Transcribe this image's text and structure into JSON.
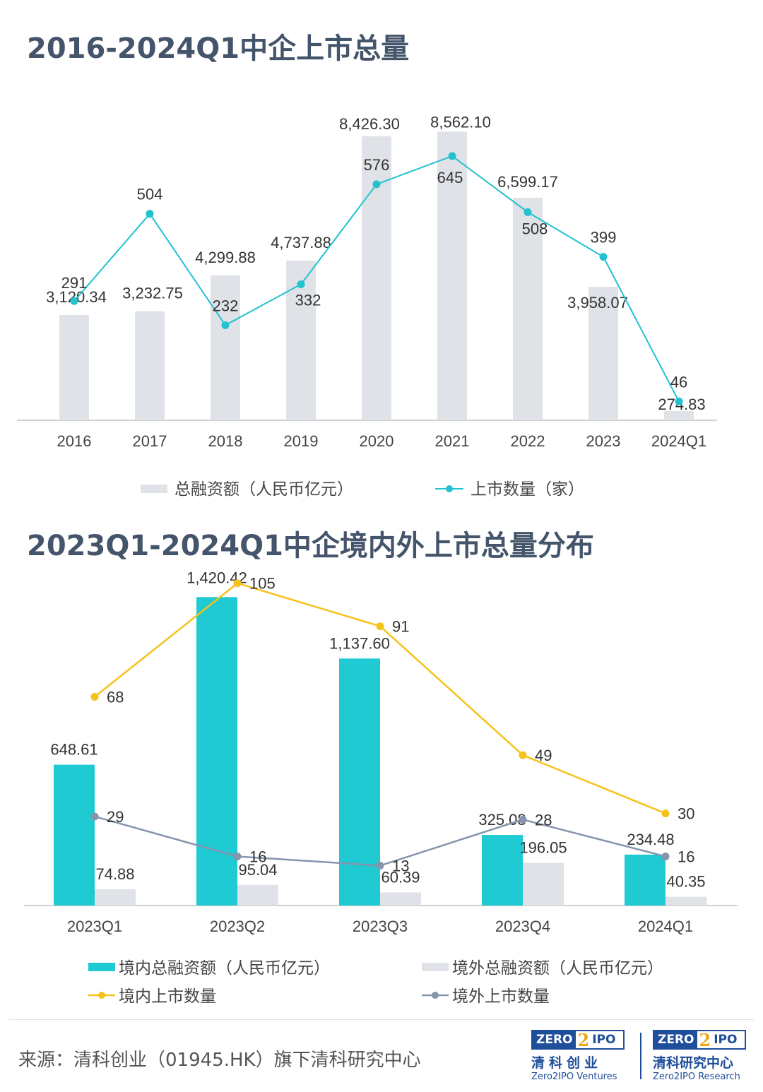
{
  "titles": {
    "chart1": "2016-2024Q1中企上市总量",
    "chart2": "2023Q1-2024Q1中企境内外上市总量分布"
  },
  "colors": {
    "title": "#44546a",
    "bar_gray": "#dfe2e7",
    "line_teal": "#22c2d0",
    "bar_teal": "#1fcad3",
    "line_yellow": "#f5c21b",
    "line_slate": "#8595ad",
    "axis": "#d0d0d0",
    "label": "#333333"
  },
  "chart_data": [
    {
      "type": "bar",
      "title": "2016-2024Q1中企上市总量",
      "categories": [
        "2016",
        "2017",
        "2018",
        "2019",
        "2020",
        "2021",
        "2022",
        "2023",
        "2024Q1"
      ],
      "series": [
        {
          "name": "总融资额（人民币亿元）",
          "kind": "bar",
          "values": [
            3120.34,
            3232.75,
            4299.88,
            4737.88,
            8426.3,
            8562.1,
            6599.17,
            3958.07,
            274.83
          ],
          "labels": [
            "3,120.34",
            "3,232.75",
            "4,299.88",
            "4,737.88",
            "8,426.30",
            "8,562.10",
            "6,599.17",
            "3,958.07",
            "274.83"
          ]
        },
        {
          "name": "上市数量（家）",
          "kind": "line",
          "values": [
            291,
            504,
            232,
            332,
            576,
            645,
            508,
            399,
            46
          ],
          "labels": [
            "291",
            "504",
            "232",
            "332",
            "576",
            "645",
            "508",
            "399",
            "46"
          ]
        }
      ],
      "ylim_bar": [
        0,
        8800
      ],
      "ylim_line": [
        0,
        850
      ],
      "legend_position": "bottom"
    },
    {
      "type": "bar",
      "title": "2023Q1-2024Q1中企境内外上市总量分布",
      "categories": [
        "2023Q1",
        "2023Q2",
        "2023Q3",
        "2023Q4",
        "2024Q1"
      ],
      "series": [
        {
          "name": "境内总融资额（人民币亿元）",
          "kind": "bar",
          "values": [
            648.61,
            1420.42,
            1137.6,
            325.08,
            234.48
          ],
          "labels": [
            "648.61",
            "1,420.42",
            "1,137.60",
            "325.08",
            "234.48"
          ]
        },
        {
          "name": "境外总融资额（人民币亿元）",
          "kind": "bar",
          "values": [
            74.88,
            95.04,
            60.39,
            196.05,
            40.35
          ],
          "labels": [
            "74.88",
            "95.04",
            "60.39",
            "196.05",
            "40.35"
          ]
        },
        {
          "name": "境内上市数量",
          "kind": "line",
          "values": [
            68,
            105,
            91,
            49,
            30
          ],
          "labels": [
            "68",
            "105",
            "91",
            "49",
            "30"
          ]
        },
        {
          "name": "境外上市数量",
          "kind": "line",
          "values": [
            29,
            16,
            13,
            28,
            16
          ],
          "labels": [
            "29",
            "16",
            "13",
            "28",
            "16"
          ]
        }
      ],
      "ylim_bar": [
        0,
        1480
      ],
      "ylim_line": [
        0,
        110
      ],
      "legend_position": "bottom"
    }
  ],
  "footer": {
    "source": "来源：清科创业（01945.HK）旗下清科研究中心",
    "logo1": {
      "zero": "ZERO",
      "two": "2",
      "ipo": "IPO",
      "cn": "清科创业",
      "en": "Zero2IPO Ventures"
    },
    "logo2": {
      "zero": "ZERO",
      "two": "2",
      "ipo": "IPO",
      "cn": "清科研究中心",
      "en": "Zero2IPO Research"
    }
  }
}
